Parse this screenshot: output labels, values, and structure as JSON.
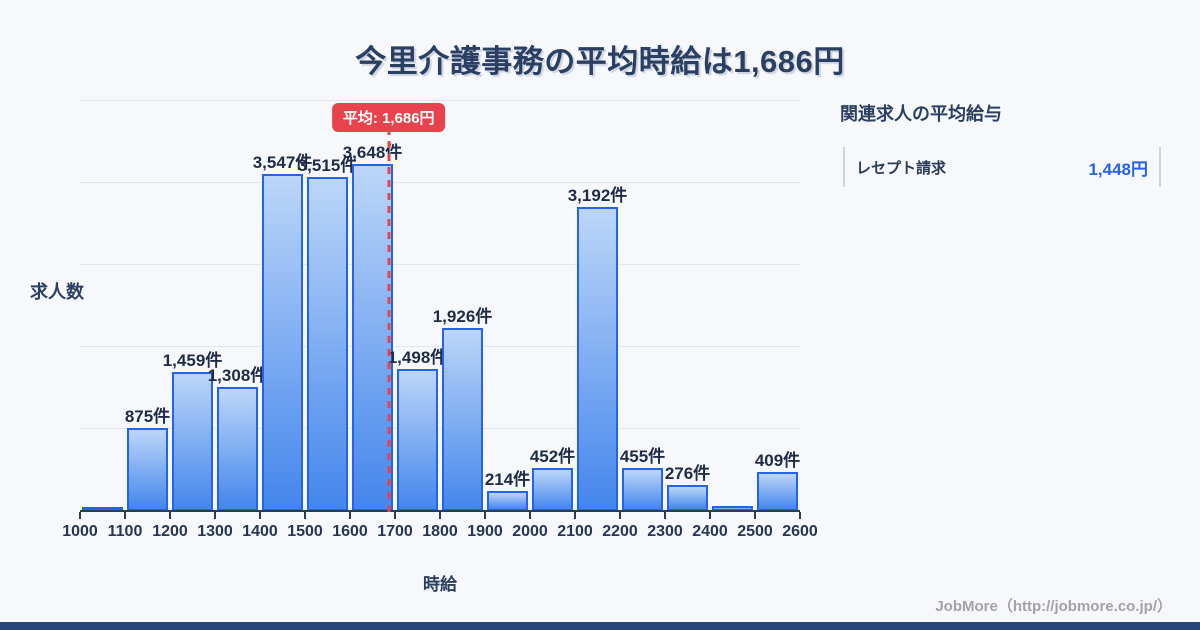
{
  "title": "今里介護事務の平均時給は1,686円",
  "chart_data": {
    "type": "bar",
    "title": "今里介護事務の平均時給は1,686円",
    "xlabel": "時給",
    "ylabel": "求人数",
    "x_range": [
      1000,
      2600
    ],
    "bin_width": 100,
    "ylim": [
      0,
      3800
    ],
    "grid": true,
    "legend": false,
    "x_ticks": [
      "1000",
      "1100",
      "1200",
      "1300",
      "1400",
      "1500",
      "1600",
      "1700",
      "1800",
      "1900",
      "2000",
      "2100",
      "2200",
      "2300",
      "2400",
      "2500",
      "2600"
    ],
    "categories": [
      "1000-1100",
      "1100-1200",
      "1200-1300",
      "1300-1400",
      "1400-1500",
      "1500-1600",
      "1600-1700",
      "1700-1800",
      "1800-1900",
      "1900-2000",
      "2000-2100",
      "2100-2200",
      "2200-2300",
      "2300-2400",
      "2400-2500",
      "2500-2600"
    ],
    "values": [
      35,
      875,
      1459,
      1308,
      3547,
      3515,
      3648,
      1498,
      1926,
      214,
      452,
      3192,
      455,
      276,
      55,
      409
    ],
    "bar_labels": [
      "",
      "875件",
      "1,459件",
      "1,308件",
      "3,547件",
      "3,515件",
      "3,648件",
      "1,498件",
      "1,926件",
      "214件",
      "452件",
      "3,192件",
      "455件",
      "276件",
      "",
      "409件"
    ],
    "average": 1686,
    "average_label": "平均: 1,686円"
  },
  "side_panel": {
    "title": "関連求人の平均給与",
    "items": [
      {
        "label": "レセプト請求",
        "value": "1,448円"
      }
    ]
  },
  "footer": {
    "credit": "JobMore（http://jobmore.co.jp/）"
  },
  "colors": {
    "background": "#f7f8fb",
    "navy": "#2b3f63",
    "accent_red": "#e8434c",
    "bar_border": "#2563eb",
    "bar_fill_top": "#bcd6f8",
    "bar_fill_bottom": "#4486ec",
    "value_blue": "#2563eb",
    "footer_bar": "#27457b"
  }
}
